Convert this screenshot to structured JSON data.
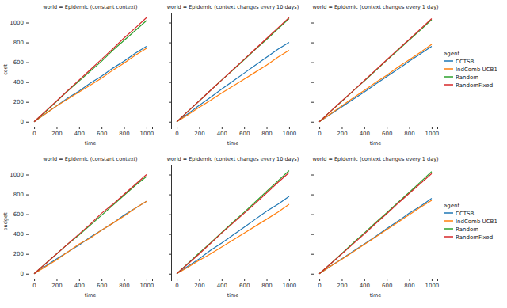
{
  "chart_data": [
    {
      "type": "line",
      "title": "world = Epidemic (constant context)",
      "x_label": "time",
      "y_label": "cost",
      "x": [
        0,
        100,
        200,
        300,
        400,
        500,
        600,
        700,
        800,
        900,
        1000
      ],
      "xlim": [
        -50,
        1050
      ],
      "ylim": [
        -50,
        1100
      ],
      "xticks": [
        0,
        200,
        400,
        600,
        800,
        1000
      ],
      "yticks": [
        0,
        200,
        400,
        600,
        800,
        1000
      ],
      "series": [
        {
          "color": "#1f77b4",
          "values": [
            0,
            80,
            160,
            240,
            310,
            390,
            460,
            540,
            610,
            690,
            760
          ]
        },
        {
          "color": "#ff7f0e",
          "values": [
            0,
            80,
            160,
            230,
            300,
            370,
            440,
            520,
            590,
            670,
            740
          ]
        },
        {
          "color": "#2ca02c",
          "values": [
            0,
            100,
            205,
            310,
            410,
            510,
            610,
            720,
            820,
            920,
            1020
          ]
        },
        {
          "color": "#d62728",
          "values": [
            0,
            105,
            210,
            315,
            420,
            525,
            630,
            735,
            845,
            945,
            1050
          ]
        }
      ]
    },
    {
      "type": "line",
      "title": "world = Epidemic (context changes every 10 days)",
      "x_label": "time",
      "x": [
        0,
        100,
        200,
        300,
        400,
        500,
        600,
        700,
        800,
        900,
        1000
      ],
      "xlim": [
        -50,
        1050
      ],
      "ylim": [
        -50,
        1100
      ],
      "xticks": [
        0,
        200,
        400,
        600,
        800,
        1000
      ],
      "yticks": [
        0,
        200,
        400,
        600,
        800,
        1000
      ],
      "tick_labels": "x",
      "series": [
        {
          "color": "#1f77b4",
          "values": [
            0,
            80,
            165,
            245,
            330,
            410,
            490,
            570,
            650,
            730,
            800
          ]
        },
        {
          "color": "#ff7f0e",
          "values": [
            0,
            70,
            145,
            215,
            290,
            360,
            430,
            500,
            570,
            650,
            720
          ]
        },
        {
          "color": "#2ca02c",
          "values": [
            0,
            105,
            210,
            315,
            420,
            520,
            625,
            730,
            830,
            935,
            1040
          ]
        },
        {
          "color": "#d62728",
          "values": [
            0,
            105,
            210,
            315,
            420,
            525,
            630,
            735,
            840,
            945,
            1050
          ]
        }
      ]
    },
    {
      "type": "line",
      "title": "world = Epidemic (context changes every 1 day)",
      "x_label": "time",
      "x": [
        0,
        100,
        200,
        300,
        400,
        500,
        600,
        700,
        800,
        900,
        1000
      ],
      "xlim": [
        -50,
        1050
      ],
      "ylim": [
        -50,
        1100
      ],
      "xticks": [
        0,
        200,
        400,
        600,
        800,
        1000
      ],
      "yticks": [
        0,
        200,
        400,
        600,
        800,
        1000
      ],
      "tick_labels": "x",
      "legend": "right",
      "legend_title": "agent",
      "series": [
        {
          "name": "CCTSB",
          "color": "#1f77b4",
          "values": [
            0,
            75,
            150,
            225,
            300,
            380,
            455,
            530,
            610,
            685,
            760
          ]
        },
        {
          "name": "IndComb UCB1",
          "color": "#ff7f0e",
          "values": [
            0,
            80,
            160,
            240,
            315,
            395,
            470,
            550,
            625,
            700,
            780
          ]
        },
        {
          "name": "Random",
          "color": "#2ca02c",
          "values": [
            0,
            105,
            205,
            310,
            410,
            515,
            620,
            720,
            825,
            925,
            1030
          ]
        },
        {
          "name": "RandomFixed",
          "color": "#d62728",
          "values": [
            0,
            105,
            210,
            310,
            415,
            520,
            625,
            730,
            830,
            935,
            1040
          ]
        }
      ]
    },
    {
      "type": "line",
      "title": "world = Epidemic (constant context)",
      "x_label": "time",
      "y_label": "budget",
      "x": [
        0,
        100,
        200,
        300,
        400,
        500,
        600,
        700,
        800,
        900,
        1000
      ],
      "xlim": [
        -50,
        1050
      ],
      "ylim": [
        -50,
        1100
      ],
      "xticks": [
        0,
        200,
        400,
        600,
        800,
        1000
      ],
      "yticks": [
        0,
        200,
        400,
        600,
        800,
        1000
      ],
      "series": [
        {
          "color": "#1f77b4",
          "values": [
            0,
            75,
            150,
            220,
            290,
            370,
            440,
            510,
            590,
            660,
            730
          ]
        },
        {
          "color": "#ff7f0e",
          "values": [
            0,
            70,
            140,
            220,
            300,
            360,
            440,
            510,
            580,
            660,
            730
          ]
        },
        {
          "color": "#2ca02c",
          "values": [
            0,
            100,
            200,
            300,
            390,
            490,
            590,
            690,
            790,
            890,
            980
          ]
        },
        {
          "color": "#d62728",
          "values": [
            0,
            100,
            200,
            300,
            400,
            500,
            610,
            700,
            800,
            900,
            1000
          ]
        }
      ]
    },
    {
      "type": "line",
      "title": "world = Epidemic (context changes every 10 days)",
      "x_label": "time",
      "x": [
        0,
        100,
        200,
        300,
        400,
        500,
        600,
        700,
        800,
        900,
        1000
      ],
      "xlim": [
        -50,
        1050
      ],
      "ylim": [
        -50,
        1100
      ],
      "xticks": [
        0,
        200,
        400,
        600,
        800,
        1000
      ],
      "yticks": [
        0,
        200,
        400,
        600,
        800,
        1000
      ],
      "tick_labels": "x",
      "series": [
        {
          "color": "#1f77b4",
          "values": [
            0,
            75,
            150,
            235,
            310,
            390,
            470,
            550,
            630,
            700,
            780
          ]
        },
        {
          "color": "#ff7f0e",
          "values": [
            0,
            65,
            135,
            200,
            270,
            340,
            410,
            480,
            550,
            620,
            700
          ]
        },
        {
          "color": "#2ca02c",
          "values": [
            0,
            105,
            210,
            310,
            415,
            520,
            620,
            725,
            830,
            935,
            1040
          ]
        },
        {
          "color": "#d62728",
          "values": [
            0,
            100,
            200,
            305,
            410,
            510,
            610,
            710,
            815,
            920,
            1020
          ]
        }
      ]
    },
    {
      "type": "line",
      "title": "world = Epidemic (context changes every 1 day)",
      "x_label": "time",
      "x": [
        0,
        100,
        200,
        300,
        400,
        500,
        600,
        700,
        800,
        900,
        1000
      ],
      "xlim": [
        -50,
        1050
      ],
      "ylim": [
        -50,
        1100
      ],
      "xticks": [
        0,
        200,
        400,
        600,
        800,
        1000
      ],
      "yticks": [
        0,
        200,
        400,
        600,
        800,
        1000
      ],
      "tick_labels": "x",
      "legend": "right",
      "legend_title": "agent",
      "series": [
        {
          "name": "CCTSB",
          "color": "#1f77b4",
          "values": [
            0,
            75,
            150,
            225,
            300,
            375,
            455,
            530,
            610,
            680,
            760
          ]
        },
        {
          "name": "IndComb UCB1",
          "color": "#ff7f0e",
          "values": [
            0,
            75,
            145,
            220,
            295,
            370,
            445,
            520,
            595,
            670,
            740
          ]
        },
        {
          "name": "Random",
          "color": "#2ca02c",
          "values": [
            0,
            100,
            205,
            310,
            410,
            515,
            615,
            720,
            820,
            925,
            1030
          ]
        },
        {
          "name": "RandomFixed",
          "color": "#d62728",
          "values": [
            0,
            100,
            200,
            300,
            400,
            505,
            605,
            710,
            810,
            910,
            1010
          ]
        }
      ]
    }
  ]
}
